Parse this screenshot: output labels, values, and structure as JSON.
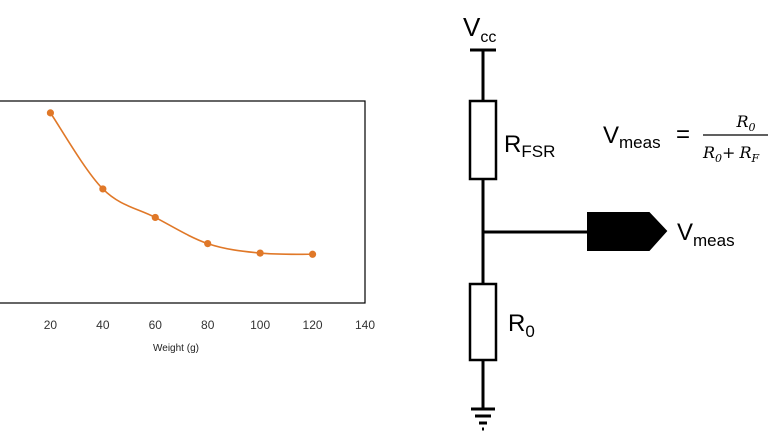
{
  "chart_data": {
    "type": "line",
    "x": [
      20,
      40,
      60,
      80,
      100,
      120
    ],
    "series": [
      {
        "values": [
          10.0,
          6.8,
          5.6,
          4.5,
          4.1,
          4.05
        ]
      }
    ],
    "xlabel": "Weight (g)",
    "ylabel": "",
    "xticks": [
      "20",
      "40",
      "60",
      "80",
      "100",
      "120",
      "140"
    ],
    "xlim": [
      0,
      140
    ],
    "ylim": [
      2,
      10.5
    ],
    "grid": false,
    "color": "#E07828"
  },
  "circuit": {
    "supply": {
      "main": "V",
      "sub": "cc"
    },
    "resistor_top": {
      "main": "R",
      "sub": "FSR"
    },
    "resistor_bottom": {
      "main": "R",
      "sub": "0"
    },
    "output": {
      "main": "V",
      "sub": "meas"
    },
    "ground_icon": "ground-symbol-icon",
    "probe_icon": "output-probe-icon"
  },
  "equation": {
    "lhs_main": "V",
    "lhs_sub": "meas",
    "equals": "=",
    "num_main": "R",
    "num_sub": "0",
    "den_a_main": "R",
    "den_a_sub": "0",
    "plus": "+",
    "den_b_main": "R",
    "den_b_sub": "F"
  }
}
